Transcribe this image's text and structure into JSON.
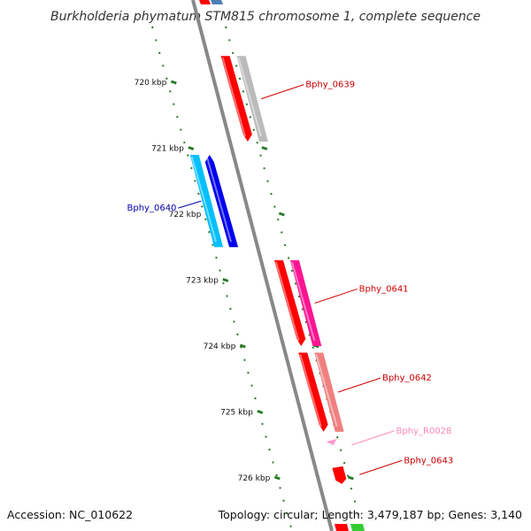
{
  "title": "Burkholderia phymatum STM815 chromosome 1, complete sequence",
  "footer": {
    "accession": "Accession: NC_010622",
    "summary": "Topology: circular; Length: 3,479,187 bp; Genes: 3,140"
  },
  "ticks": [
    {
      "label": "720 kbp",
      "kbp": 720
    },
    {
      "label": "721 kbp",
      "kbp": 721
    },
    {
      "label": "722 kbp",
      "kbp": 722
    },
    {
      "label": "723 kbp",
      "kbp": 723
    },
    {
      "label": "724 kbp",
      "kbp": 724
    },
    {
      "label": "725 kbp",
      "kbp": 725
    },
    {
      "label": "726 kbp",
      "kbp": 726
    }
  ],
  "genes": [
    {
      "id": "Bphy_0639",
      "label": "Bphy_0639",
      "strand": "+",
      "start_kbp": 719.6,
      "end_kbp": 720.9,
      "color": "#ff0000",
      "label_color": "#cc0000"
    },
    {
      "id": "Bphy_0640",
      "label": "Bphy_0640",
      "strand": "-",
      "start_kbp": 721.1,
      "end_kbp": 722.5,
      "color": "#0000ee",
      "label_color": "#0000aa"
    },
    {
      "id": "Bphy_0641",
      "label": "Bphy_0641",
      "strand": "+",
      "start_kbp": 722.7,
      "end_kbp": 724.0,
      "color": "#ff0000",
      "label_color": "#cc0000"
    },
    {
      "id": "Bphy_0642",
      "label": "Bphy_0642",
      "strand": "+",
      "start_kbp": 724.1,
      "end_kbp": 725.3,
      "color": "#ff0000",
      "label_color": "#cc0000"
    },
    {
      "id": "Bphy_R0028",
      "label": "Bphy_R0028",
      "strand": "+",
      "start_kbp": 725.45,
      "end_kbp": 725.55,
      "color": "#ff99cc",
      "label_color": "#ff88bb"
    },
    {
      "id": "Bphy_0643",
      "label": "Bphy_0643",
      "strand": "+",
      "start_kbp": 725.85,
      "end_kbp": 726.05,
      "color": "#ff0000",
      "label_color": "#cc0000"
    }
  ],
  "colors": {
    "backbone": "#888888",
    "tick": "#2a7a2a",
    "cog_track_plus": [
      "#bbbbbb",
      "#ff1493",
      "#f08080"
    ],
    "cog_track_minus": "#00bfff"
  }
}
